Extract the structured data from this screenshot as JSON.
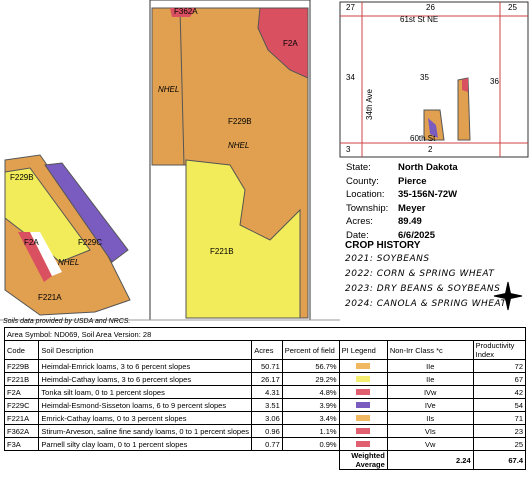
{
  "map": {
    "labels": [
      "F362A",
      "F2A",
      "NHEL",
      "F229B",
      "NHEL",
      "F221B",
      "F229B",
      "F2A",
      "F229C",
      "NHEL",
      "F221A"
    ]
  },
  "locator": {
    "sections": [
      "27",
      "26",
      "25",
      "34",
      "35",
      "36",
      "3",
      "2"
    ],
    "roads": [
      "61st St NE",
      "34th Ave",
      "60th St"
    ]
  },
  "info": [
    {
      "label": "State:",
      "value": "North Dakota"
    },
    {
      "label": "County:",
      "value": "Pierce"
    },
    {
      "label": "Location:",
      "value": "35-156N-72W"
    },
    {
      "label": "Township:",
      "value": "Meyer"
    },
    {
      "label": "Acres:",
      "value": "89.49"
    },
    {
      "label": "Date:",
      "value": "6/6/2025"
    }
  ],
  "crop_history": {
    "title": "CROP HISTORY",
    "entries": [
      "2021: SOYBEANS",
      "2022: CORN & SPRING WHEAT",
      "2023: DRY BEANS & SOYBEANS",
      "2024: CANOLA & SPRING WHEAT"
    ]
  },
  "credit": "Soils data provided by USDA and NRCS.",
  "table": {
    "area": "Area Symbol: ND069, Soil Area Version: 28",
    "columns": [
      "Code",
      "Soil Description",
      "Acres",
      "Percent of field",
      "PI Legend",
      "Non-Irr Class *c",
      "Productivity Index"
    ],
    "rows": [
      {
        "code": "F229B",
        "description": "Heimdal-Emrick loams, 3 to 6 percent slopes",
        "acres": "50.71",
        "percent": "56.7%",
        "color": "#f0b860",
        "class": "IIe",
        "index": "72"
      },
      {
        "code": "F221B",
        "description": "Heimdal-Cathay loams, 3 to 6 percent slopes",
        "acres": "26.17",
        "percent": "29.2%",
        "color": "#f5ee70",
        "class": "IIe",
        "index": "67"
      },
      {
        "code": "F2A",
        "description": "Tonka silt loam, 0 to 1 percent slopes",
        "acres": "4.31",
        "percent": "4.8%",
        "color": "#e06070",
        "class": "IVw",
        "index": "42"
      },
      {
        "code": "F229C",
        "description": "Heimdal-Esmond-Sisseton loams, 6 to 9 percent slopes",
        "acres": "3.51",
        "percent": "3.9%",
        "color": "#7a5cc0",
        "class": "IVe",
        "index": "54"
      },
      {
        "code": "F221A",
        "description": "Emrick-Cathay loams, 0 to 3 percent slopes",
        "acres": "3.06",
        "percent": "3.4%",
        "color": "#f0b860",
        "class": "IIs",
        "index": "71"
      },
      {
        "code": "F362A",
        "description": "Stirum-Arveson, saline fine sandy loams, 0 to 1 percent slopes",
        "acres": "0.96",
        "percent": "1.1%",
        "color": "#e06070",
        "class": "VIs",
        "index": "23"
      },
      {
        "code": "F3A",
        "description": "Parnell silty clay loam, 0 to 1 percent slopes",
        "acres": "0.77",
        "percent": "0.9%",
        "color": "#e06070",
        "class": "Vw",
        "index": "25"
      }
    ],
    "footer": {
      "label": "Weighted Average",
      "values": [
        "2.24",
        "67.4"
      ]
    }
  }
}
